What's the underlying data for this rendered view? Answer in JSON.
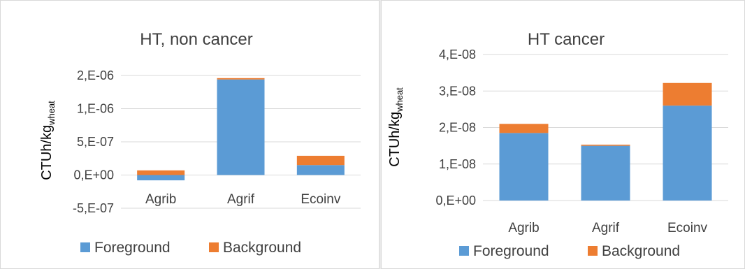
{
  "colors": {
    "foreground": "#5b9bd5",
    "background": "#ed7d31",
    "grid": "#d9d9d9"
  },
  "chart_data": [
    {
      "type": "bar",
      "stacked": true,
      "title": "HT, non cancer",
      "ylabel": "CTUh/kg",
      "ylabel_sub": "wheat",
      "categories": [
        "Agrib",
        "Agrif",
        "Ecoinv"
      ],
      "series": [
        {
          "name": "Foreground",
          "values": [
            -8e-08,
            1.44e-06,
            1.5e-07
          ]
        },
        {
          "name": "Background",
          "values": [
            7e-08,
            2e-08,
            1.4e-07
          ]
        }
      ],
      "ylim": [
        -5e-07,
        1.5e-06
      ],
      "yticks": [
        -5e-07,
        0,
        5e-07,
        1e-06,
        1.5e-06
      ],
      "ytick_labels": [
        "-5,E-07",
        "0,E+00",
        "5,E-07",
        "1,E-06",
        "2,E-06"
      ],
      "grid": true,
      "legend": "bottom"
    },
    {
      "type": "bar",
      "stacked": true,
      "title": "HT cancer",
      "ylabel": "CTUh/kg",
      "ylabel_sub": "wheat",
      "categories": [
        "Agrib",
        "Agrif",
        "Ecoinv"
      ],
      "series": [
        {
          "name": "Foreground",
          "values": [
            1.85e-08,
            1.5e-08,
            2.6e-08
          ]
        },
        {
          "name": "Background",
          "values": [
            2.5e-09,
            3e-10,
            6.2e-09
          ]
        }
      ],
      "ylim": [
        0,
        4e-08
      ],
      "yticks": [
        0,
        1e-08,
        2e-08,
        3e-08,
        4e-08
      ],
      "ytick_labels": [
        "0,E+00",
        "1,E-08",
        "2,E-08",
        "3,E-08",
        "4,E-08"
      ],
      "grid": true,
      "legend": "bottom"
    }
  ]
}
